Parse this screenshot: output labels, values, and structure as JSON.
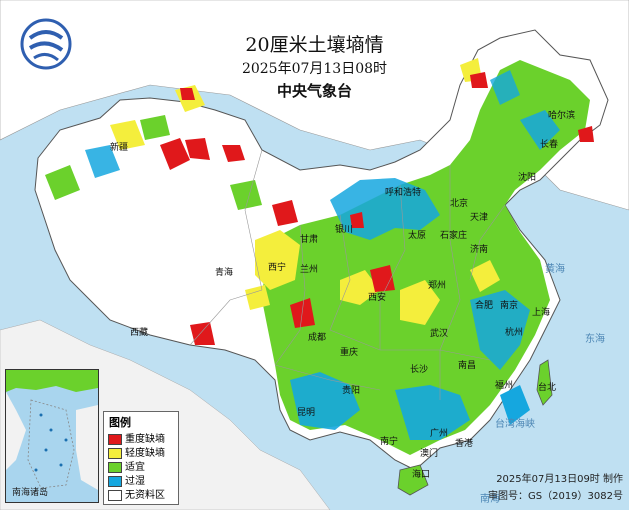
{
  "map": {
    "title": "20厘米土壤墒情",
    "datetime": "2025年07月13日08时",
    "agency": "中央气象台",
    "legend": {
      "title": "图例",
      "items": [
        {
          "label": "重度缺墒",
          "color": "#e0181b"
        },
        {
          "label": "轻度缺墒",
          "color": "#f4ee3c"
        },
        {
          "label": "适宜",
          "color": "#6bd12c"
        },
        {
          "label": "过湿",
          "color": "#15a7df"
        },
        {
          "label": "无资料区",
          "color": "#ffffff"
        }
      ]
    },
    "footer": {
      "made": "2025年07月13日09时 制作",
      "approval": "审图号：GS（2019）3082号"
    },
    "inset_label": "南海诸岛",
    "regions": [
      "新疆",
      "西藏",
      "青海",
      "甘肃",
      "西宁",
      "兰州",
      "银川",
      "呼和浩特",
      "北京",
      "天津",
      "石家庄",
      "太原",
      "济南",
      "郑州",
      "西安",
      "成都",
      "重庆",
      "武汉",
      "合肥",
      "南京",
      "上海",
      "杭州",
      "长沙",
      "南昌",
      "贵阳",
      "昆明",
      "福州",
      "台北",
      "广州",
      "香港",
      "澳门",
      "南宁",
      "海口",
      "长春",
      "沈阳",
      "哈尔滨"
    ],
    "seas": [
      "黄海",
      "东海",
      "台湾海峡",
      "南海"
    ],
    "colors": {
      "ocean": "#bfe0f2",
      "land_nodata": "#ffffff",
      "border": "#555555"
    }
  }
}
